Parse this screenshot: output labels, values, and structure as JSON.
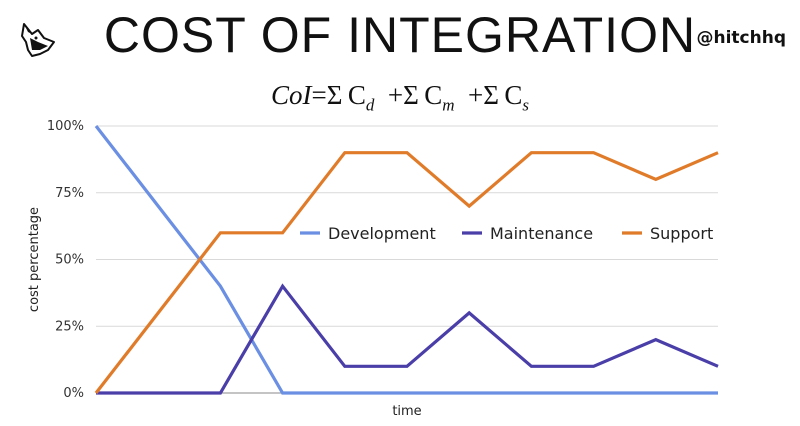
{
  "header": {
    "title": "COST OF INTEGRATION",
    "handle": "@hitchhq",
    "logo_icon": "wolf-head-icon"
  },
  "formula": {
    "lhs": "CoI",
    "eq": "=",
    "sigma": "Σ",
    "c": "C",
    "plus": "+",
    "sub_d": "d",
    "sub_m": "m",
    "sub_s": "s"
  },
  "chart_data": {
    "type": "line",
    "x": [
      0,
      1,
      2,
      3,
      4,
      5,
      6,
      7,
      8,
      9,
      10
    ],
    "xlabel": "time",
    "ylabel": "cost percentage",
    "ylim": [
      0,
      100
    ],
    "yticks": [
      0,
      25,
      50,
      75,
      100
    ],
    "ytick_labels": [
      "0%",
      "25%",
      "50%",
      "75%",
      "100%"
    ],
    "grid": true,
    "legend_position": "center",
    "series": [
      {
        "name": "Development",
        "color": "#6b8fe3",
        "values": [
          100,
          70,
          40,
          0,
          0,
          0,
          0,
          0,
          0,
          0,
          0
        ]
      },
      {
        "name": "Maintenance",
        "color": "#4a3ea8",
        "values": [
          0,
          0,
          0,
          40,
          10,
          10,
          30,
          10,
          10,
          20,
          10
        ]
      },
      {
        "name": "Support",
        "color": "#e07b2a",
        "values": [
          0,
          30,
          60,
          60,
          90,
          90,
          70,
          90,
          90,
          80,
          90
        ]
      }
    ]
  }
}
